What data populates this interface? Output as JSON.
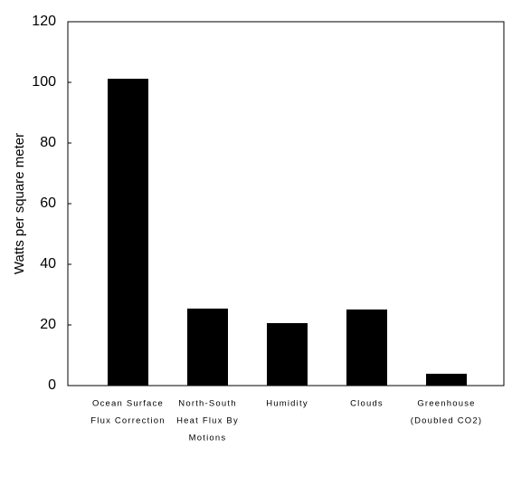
{
  "chart_data": {
    "type": "bar",
    "y_label": "Watts per square meter",
    "categories": [
      [
        "Ocean Surface",
        "Flux Correction"
      ],
      [
        "North-South",
        "Heat Flux By",
        "Motions"
      ],
      [
        "Humidity"
      ],
      [
        "Clouds"
      ],
      [
        "Greenhouse",
        "(Doubled CO2)"
      ]
    ],
    "values": [
      101.2,
      25.4,
      20.6,
      25.1,
      3.9
    ],
    "color": "#000000",
    "ylim": [
      0,
      120
    ],
    "yticks": [
      0,
      20,
      40,
      60,
      80,
      100,
      120
    ]
  }
}
